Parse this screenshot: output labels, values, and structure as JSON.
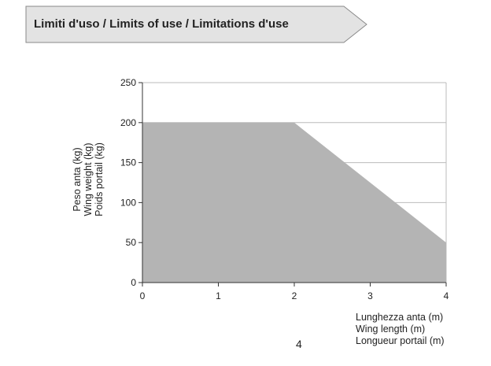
{
  "header": {
    "title": "Limiti d'uso / Limits of use / Limitations d'use"
  },
  "page_number": "4",
  "colors": {
    "banner_fill": "#e3e3e3",
    "banner_stroke": "#8a8a8a",
    "area_fill": "#b4b4b4",
    "grid": "#bbbbbb"
  },
  "chart_data": {
    "type": "area",
    "x": [
      0,
      2,
      4
    ],
    "series": [
      {
        "values": [
          200,
          200,
          50
        ]
      }
    ],
    "xlabel": [
      "Lunghezza anta (m)",
      "Wing length (m)",
      "Longueur portail (m)"
    ],
    "ylabel": [
      "Peso anta (kg)",
      "Wing weight (kg)",
      "Poids portail (kg)"
    ],
    "xlim": [
      0,
      4
    ],
    "ylim": [
      0,
      250
    ],
    "xticks": [
      0,
      1,
      2,
      3,
      4
    ],
    "yticks": [
      0,
      50,
      100,
      150,
      200,
      250
    ],
    "grid": true,
    "legend": "none"
  }
}
